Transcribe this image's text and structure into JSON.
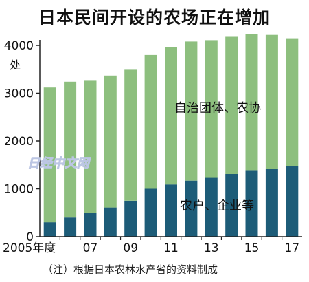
{
  "chart_data": {
    "type": "bar",
    "stacked": true,
    "title": "日本民间开设的农场正在增加",
    "unit": "处",
    "note": "（注）根据日本农林水产省的资料制成",
    "categories": [
      "2005",
      "06",
      "07",
      "08",
      "09",
      "10",
      "11",
      "12",
      "13",
      "14",
      "15",
      "16",
      "17"
    ],
    "x_tick_labels": [
      "2005年度",
      "07",
      "09",
      "11",
      "13",
      "15",
      "17"
    ],
    "x_tick_categories": [
      "2005",
      "07",
      "09",
      "11",
      "13",
      "15",
      "17"
    ],
    "ylim": [
      0,
      4000
    ],
    "y_ticks": [
      0,
      1000,
      2000,
      3000,
      4000
    ],
    "grid": false,
    "series": [
      {
        "name": "农户、企业等",
        "color": "#1d5c78",
        "values": [
          300,
          400,
          490,
          610,
          750,
          1000,
          1090,
          1170,
          1230,
          1310,
          1390,
          1420,
          1470
        ]
      },
      {
        "name": "自治团体、农协",
        "color": "#8dbf7e",
        "values": [
          2820,
          2840,
          2770,
          2760,
          2740,
          2800,
          2870,
          2910,
          2880,
          2870,
          2840,
          2800,
          2680
        ]
      }
    ],
    "watermark": "日经中文网"
  }
}
